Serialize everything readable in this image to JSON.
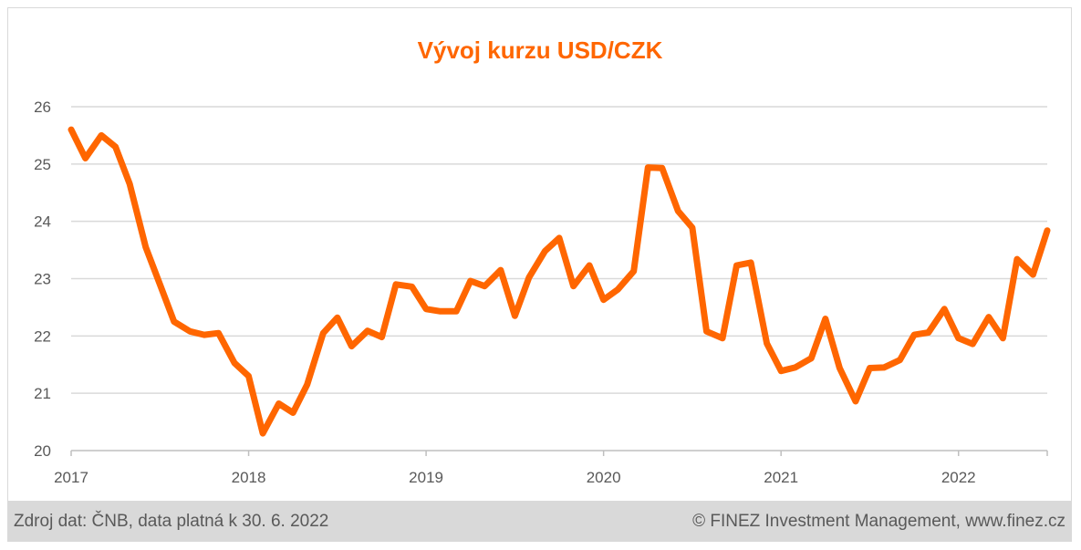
{
  "footer": {
    "source": "Zdroj dat: ČNB, data platná k 30. 6. 2022",
    "copyright": "© FINEZ Investment Management, www.finez.cz"
  },
  "colors": {
    "line": "#ff6600",
    "grid": "#d9d9d9",
    "axis": "#bfbfbf",
    "text": "#595959",
    "footer_bg": "#d9d9d9"
  },
  "chart_data": {
    "type": "line",
    "title": "Vývoj kurzu USD/CZK",
    "xlabel": "",
    "ylabel": "",
    "ylim": [
      20,
      26
    ],
    "xlim": [
      2017.0,
      2022.5
    ],
    "yticks": [
      "20",
      "21",
      "22",
      "23",
      "24",
      "25",
      "26"
    ],
    "xticks": [
      "2017",
      "2018",
      "2019",
      "2020",
      "2021",
      "2022"
    ],
    "grid": true,
    "legend": "none",
    "series": [
      {
        "values": [
          {
            "x": 2017.0,
            "y": 25.6
          },
          {
            "x": 2017.08,
            "y": 25.1
          },
          {
            "x": 2017.17,
            "y": 25.5
          },
          {
            "x": 2017.25,
            "y": 25.3
          },
          {
            "x": 2017.33,
            "y": 24.65
          },
          {
            "x": 2017.42,
            "y": 23.55
          },
          {
            "x": 2017.5,
            "y": 22.9
          },
          {
            "x": 2017.58,
            "y": 22.25
          },
          {
            "x": 2017.67,
            "y": 22.08
          },
          {
            "x": 2017.75,
            "y": 22.02
          },
          {
            "x": 2017.83,
            "y": 22.05
          },
          {
            "x": 2017.92,
            "y": 21.53
          },
          {
            "x": 2018.0,
            "y": 21.3
          },
          {
            "x": 2018.08,
            "y": 20.3
          },
          {
            "x": 2018.17,
            "y": 20.82
          },
          {
            "x": 2018.25,
            "y": 20.66
          },
          {
            "x": 2018.33,
            "y": 21.15
          },
          {
            "x": 2018.42,
            "y": 22.05
          },
          {
            "x": 2018.5,
            "y": 22.32
          },
          {
            "x": 2018.58,
            "y": 21.82
          },
          {
            "x": 2018.67,
            "y": 22.09
          },
          {
            "x": 2018.75,
            "y": 21.98
          },
          {
            "x": 2018.83,
            "y": 22.9
          },
          {
            "x": 2018.92,
            "y": 22.86
          },
          {
            "x": 2019.0,
            "y": 22.47
          },
          {
            "x": 2019.08,
            "y": 22.43
          },
          {
            "x": 2019.17,
            "y": 22.43
          },
          {
            "x": 2019.25,
            "y": 22.96
          },
          {
            "x": 2019.33,
            "y": 22.87
          },
          {
            "x": 2019.42,
            "y": 23.15
          },
          {
            "x": 2019.5,
            "y": 22.35
          },
          {
            "x": 2019.58,
            "y": 23.02
          },
          {
            "x": 2019.67,
            "y": 23.48
          },
          {
            "x": 2019.75,
            "y": 23.71
          },
          {
            "x": 2019.83,
            "y": 22.87
          },
          {
            "x": 2019.92,
            "y": 23.23
          },
          {
            "x": 2020.0,
            "y": 22.63
          },
          {
            "x": 2020.08,
            "y": 22.81
          },
          {
            "x": 2020.17,
            "y": 23.13
          },
          {
            "x": 2020.25,
            "y": 24.94
          },
          {
            "x": 2020.33,
            "y": 24.93
          },
          {
            "x": 2020.42,
            "y": 24.18
          },
          {
            "x": 2020.5,
            "y": 23.89
          },
          {
            "x": 2020.58,
            "y": 22.08
          },
          {
            "x": 2020.67,
            "y": 21.96
          },
          {
            "x": 2020.75,
            "y": 23.23
          },
          {
            "x": 2020.83,
            "y": 23.28
          },
          {
            "x": 2020.92,
            "y": 21.87
          },
          {
            "x": 2021.0,
            "y": 21.39
          },
          {
            "x": 2021.08,
            "y": 21.45
          },
          {
            "x": 2021.17,
            "y": 21.61
          },
          {
            "x": 2021.25,
            "y": 22.3
          },
          {
            "x": 2021.33,
            "y": 21.44
          },
          {
            "x": 2021.42,
            "y": 20.86
          },
          {
            "x": 2021.5,
            "y": 21.44
          },
          {
            "x": 2021.58,
            "y": 21.45
          },
          {
            "x": 2021.67,
            "y": 21.58
          },
          {
            "x": 2021.75,
            "y": 22.02
          },
          {
            "x": 2021.83,
            "y": 22.06
          },
          {
            "x": 2021.92,
            "y": 22.47
          },
          {
            "x": 2022.0,
            "y": 21.96
          },
          {
            "x": 2022.08,
            "y": 21.86
          },
          {
            "x": 2022.17,
            "y": 22.33
          },
          {
            "x": 2022.25,
            "y": 21.96
          },
          {
            "x": 2022.33,
            "y": 23.34
          },
          {
            "x": 2022.42,
            "y": 23.07
          },
          {
            "x": 2022.5,
            "y": 23.84
          }
        ]
      }
    ]
  }
}
